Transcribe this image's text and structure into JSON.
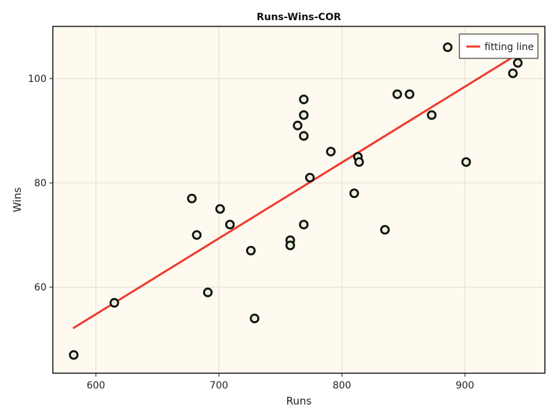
{
  "chart_data": {
    "type": "scatter",
    "title": "Runs-Wins-COR",
    "xlabel": "Runs",
    "ylabel": "Wins",
    "xlim": [
      565,
      965
    ],
    "ylim": [
      43.5,
      110
    ],
    "xticks": [
      600,
      700,
      800,
      900
    ],
    "yticks": [
      60,
      80,
      100
    ],
    "grid": true,
    "legend_position": "top-right",
    "background_color": "#fffaf0",
    "series": [
      {
        "kind": "scatter",
        "marker_fill": "#e8f0d8",
        "marker_stroke": "#111111",
        "points": [
          {
            "x": 582,
            "y": 47
          },
          {
            "x": 615,
            "y": 57
          },
          {
            "x": 678,
            "y": 77
          },
          {
            "x": 682,
            "y": 70
          },
          {
            "x": 691,
            "y": 59
          },
          {
            "x": 701,
            "y": 75
          },
          {
            "x": 709,
            "y": 72
          },
          {
            "x": 726,
            "y": 67
          },
          {
            "x": 729,
            "y": 54
          },
          {
            "x": 758,
            "y": 69
          },
          {
            "x": 758,
            "y": 68
          },
          {
            "x": 764,
            "y": 91
          },
          {
            "x": 769,
            "y": 96
          },
          {
            "x": 769,
            "y": 93
          },
          {
            "x": 769,
            "y": 89
          },
          {
            "x": 769,
            "y": 72
          },
          {
            "x": 774,
            "y": 81
          },
          {
            "x": 791,
            "y": 86
          },
          {
            "x": 810,
            "y": 78
          },
          {
            "x": 813,
            "y": 85
          },
          {
            "x": 814,
            "y": 84
          },
          {
            "x": 835,
            "y": 71
          },
          {
            "x": 845,
            "y": 97
          },
          {
            "x": 855,
            "y": 97
          },
          {
            "x": 873,
            "y": 93
          },
          {
            "x": 886,
            "y": 106
          },
          {
            "x": 901,
            "y": 84
          },
          {
            "x": 939,
            "y": 101
          },
          {
            "x": 943,
            "y": 103
          }
        ]
      },
      {
        "kind": "line",
        "name": "fitting line",
        "color": "#ee3b2e",
        "points": [
          {
            "x": 582,
            "y": 52.2
          },
          {
            "x": 943,
            "y": 104.7
          }
        ]
      }
    ]
  }
}
